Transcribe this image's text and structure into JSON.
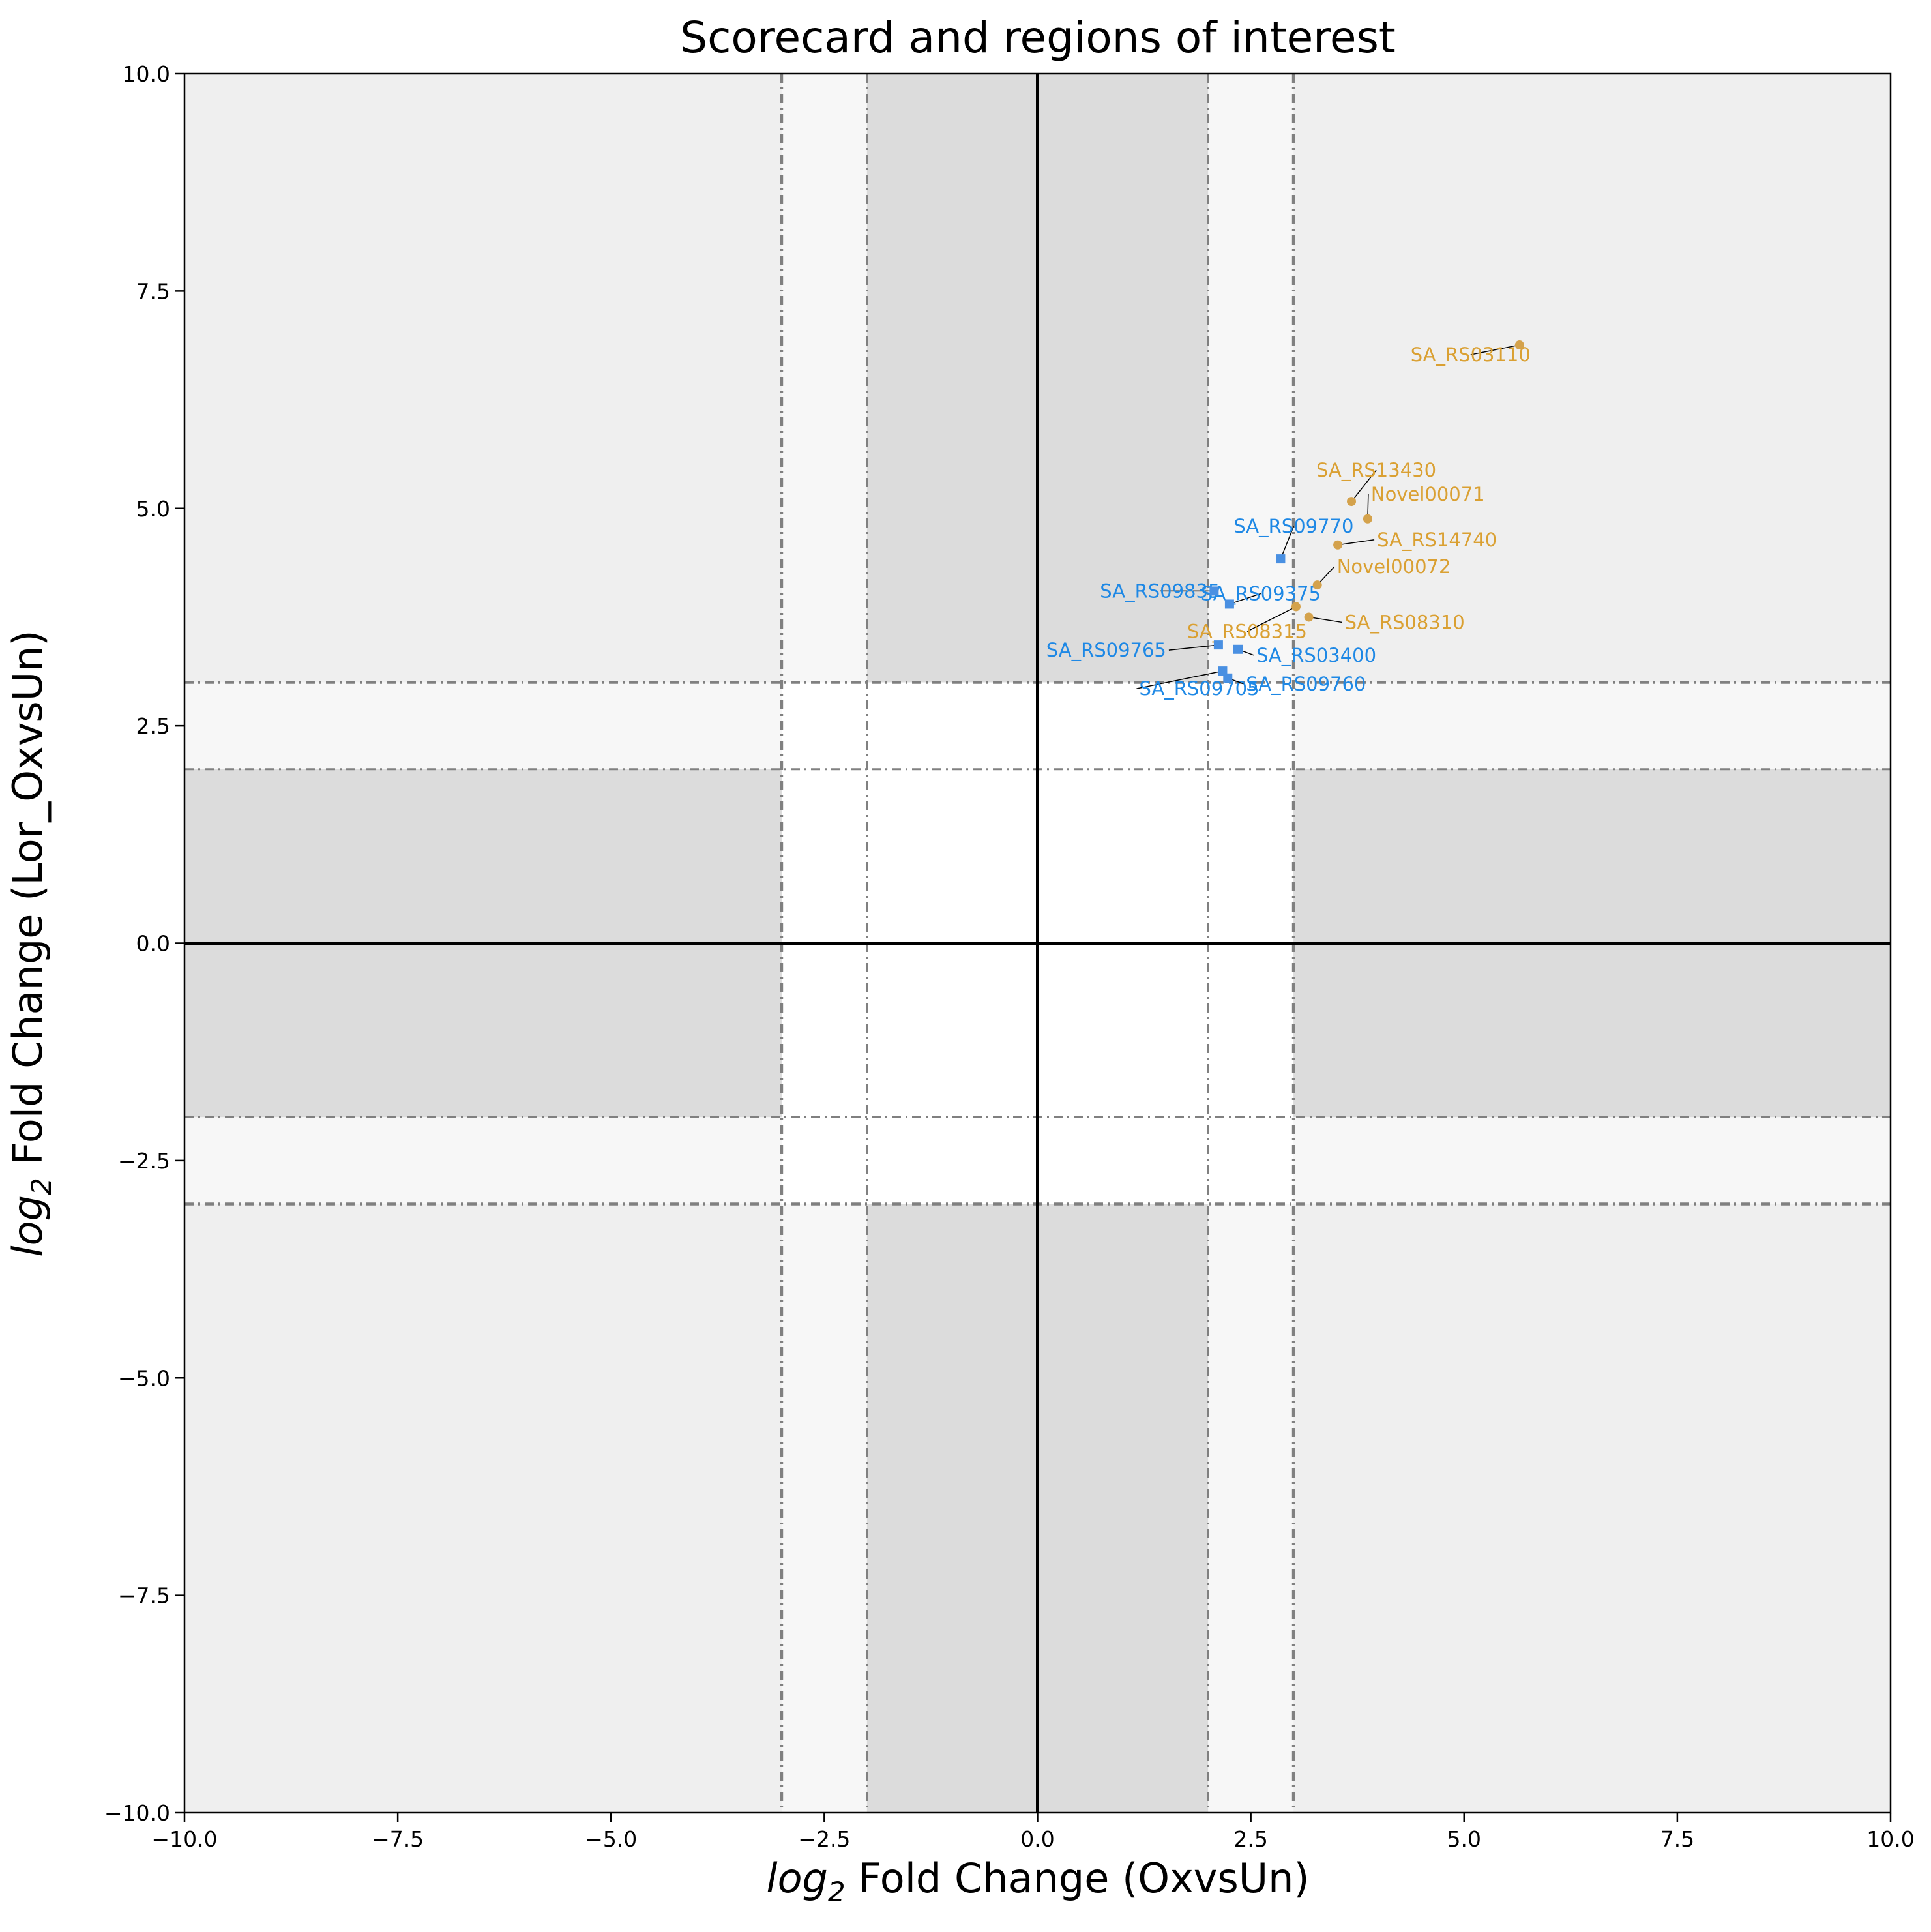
{
  "chart_data": {
    "type": "scatter",
    "title": "Scorecard and regions of interest",
    "xlabel_italic": "log",
    "xlabel_sub": "2",
    "xlabel_rest": " Fold Change (OxvsUn)",
    "ylabel_italic": "log",
    "ylabel_sub": "2",
    "ylabel_rest": " Fold Change (Lor_OxvsUn)",
    "xlim": [
      -10,
      10
    ],
    "ylim": [
      -10,
      10
    ],
    "xticks": [
      -10,
      -7.5,
      -5,
      -2.5,
      0,
      2.5,
      5,
      7.5,
      10
    ],
    "yticks": [
      -10,
      -7.5,
      -5,
      -2.5,
      0,
      2.5,
      5,
      7.5,
      10
    ],
    "xtick_labels": [
      "−10.0",
      "−7.5",
      "−5.0",
      "−2.5",
      "0.0",
      "2.5",
      "5.0",
      "7.5",
      "10.0"
    ],
    "ytick_labels": [
      "−10.0",
      "−7.5",
      "−5.0",
      "−2.5",
      "0.0",
      "2.5",
      "5.0",
      "7.5",
      "10.0"
    ],
    "thresholds": {
      "inner": 2,
      "outer": 3
    },
    "grid": false,
    "colors": {
      "series_orange": "#DAA032",
      "series_blue": "#1E88E5",
      "marker_blue": "#4A90E2",
      "marker_orange": "#D4A24C",
      "shade_dark": "#DCDCDC",
      "shade_mid": "#EFEFEF",
      "shade_light": "#F7F7F7",
      "threshold_line": "#808080"
    },
    "series": [
      {
        "color_key": "orange",
        "points": [
          {
            "x": 5.65,
            "y": 6.88,
            "label": "SA_RS03110"
          },
          {
            "x": 3.68,
            "y": 5.08,
            "label": "SA_RS13430"
          },
          {
            "x": 3.87,
            "y": 4.88,
            "label": "Novel00071"
          },
          {
            "x": 3.52,
            "y": 4.58,
            "label": "SA_RS14740"
          },
          {
            "x": 3.28,
            "y": 4.12,
            "label": "Novel00072"
          },
          {
            "x": 3.03,
            "y": 3.87,
            "label": "SA_RS08315"
          },
          {
            "x": 3.18,
            "y": 3.75,
            "label": "SA_RS08310"
          }
        ]
      },
      {
        "color_key": "blue",
        "points": [
          {
            "x": 2.85,
            "y": 4.42,
            "label": "SA_RS09770"
          },
          {
            "x": 2.07,
            "y": 4.05,
            "label": "SA_RS09835"
          },
          {
            "x": 2.25,
            "y": 3.9,
            "label": "SA_RS09375"
          },
          {
            "x": 2.12,
            "y": 3.43,
            "label": "SA_RS09765"
          },
          {
            "x": 2.35,
            "y": 3.38,
            "label": "SA_RS03400"
          },
          {
            "x": 2.17,
            "y": 3.13,
            "label": "SA_RS09705"
          },
          {
            "x": 2.23,
            "y": 3.05,
            "label": "SA_RS09760"
          }
        ]
      }
    ]
  }
}
